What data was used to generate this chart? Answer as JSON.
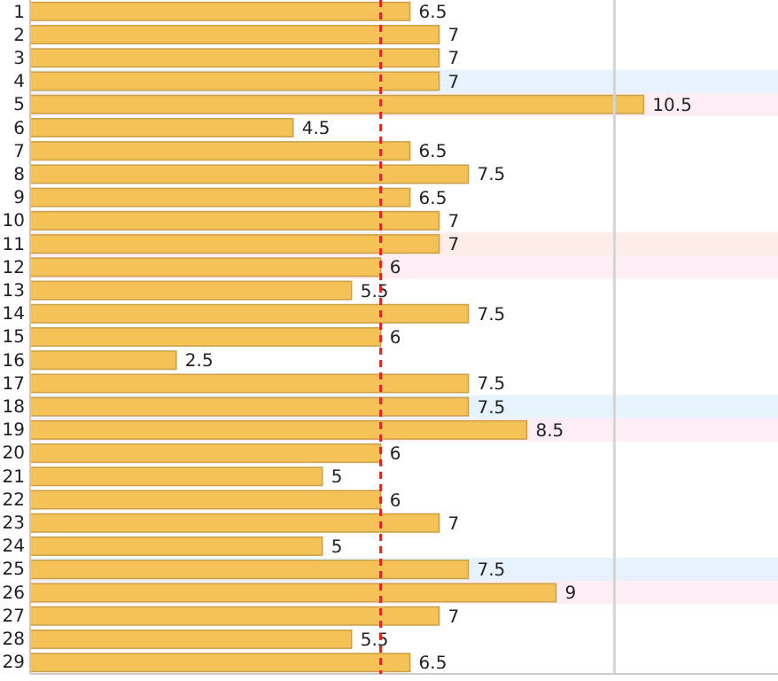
{
  "chart_data": {
    "type": "bar",
    "orientation": "horizontal",
    "categories": [
      "1",
      "2",
      "3",
      "4",
      "5",
      "6",
      "7",
      "8",
      "9",
      "10",
      "11",
      "12",
      "13",
      "14",
      "15",
      "16",
      "17",
      "18",
      "19",
      "20",
      "21",
      "22",
      "23",
      "24",
      "25",
      "26",
      "27",
      "28",
      "29"
    ],
    "values": [
      6.5,
      7,
      7,
      7,
      10.5,
      4.5,
      6.5,
      7.5,
      6.5,
      7,
      7,
      6,
      5.5,
      7.5,
      6,
      2.5,
      7.5,
      7.5,
      8.5,
      6,
      5,
      6,
      7,
      5,
      7.5,
      9,
      7,
      5.5,
      6.5
    ],
    "color": "#f5c258",
    "data_labels": true,
    "xlim": [
      0,
      12.8
    ],
    "tick_labels": "y",
    "ref_lines": [
      {
        "axis": "x",
        "value": 6,
        "color": "#e8221c",
        "line_style": "dashed"
      },
      {
        "axis": "x",
        "value": 10,
        "color": "#d4d4d4",
        "line_style": "solid"
      }
    ],
    "bands": [
      {
        "axis": "y",
        "from": "4",
        "to": "4",
        "color": "#e6f3fd"
      },
      {
        "axis": "y",
        "from": "5",
        "to": "5",
        "color": "#fdeef5"
      },
      {
        "axis": "y",
        "from": "11",
        "to": "11",
        "color": "#fdece8"
      },
      {
        "axis": "y",
        "from": "12",
        "to": "12",
        "color": "#fdeef5"
      },
      {
        "axis": "y",
        "from": "18",
        "to": "18",
        "color": "#e6f3fd"
      },
      {
        "axis": "y",
        "from": "19",
        "to": "19",
        "color": "#fdeef5"
      },
      {
        "axis": "y",
        "from": "25",
        "to": "25",
        "color": "#e6f3fd"
      },
      {
        "axis": "y",
        "from": "26",
        "to": "26",
        "color": "#fdeef5"
      }
    ]
  }
}
